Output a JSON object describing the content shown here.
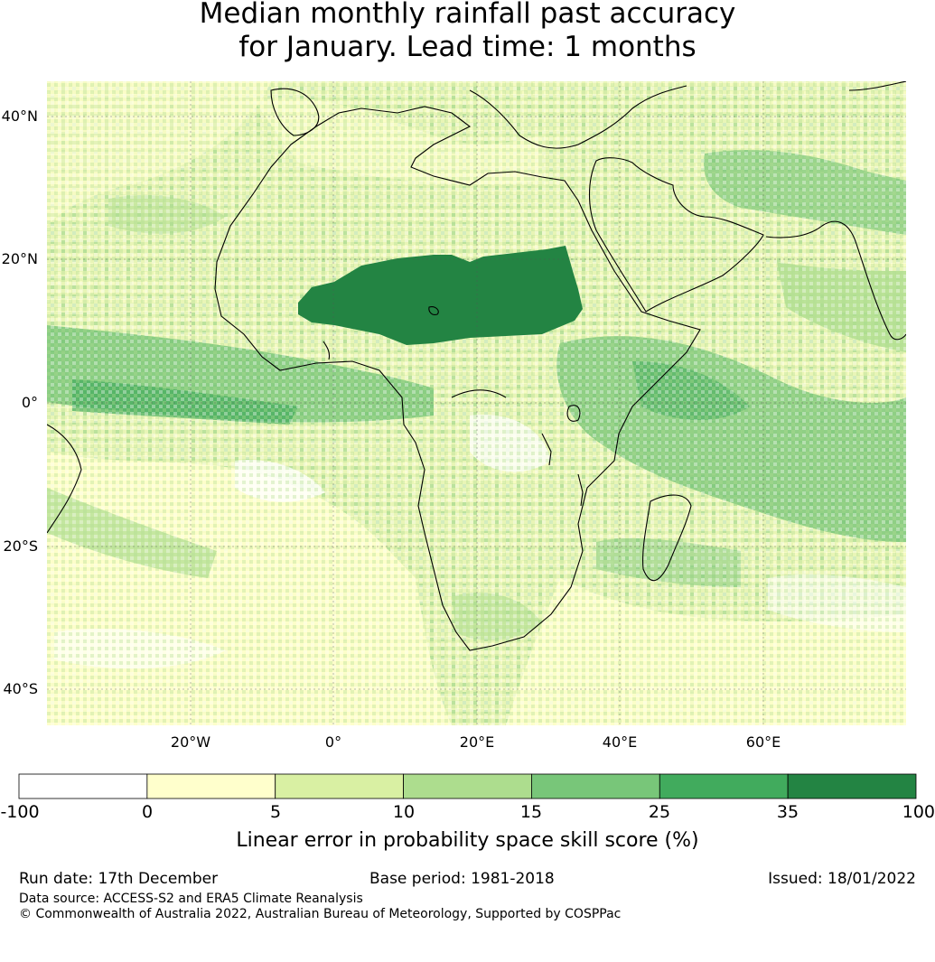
{
  "title": {
    "line1": "Median monthly rainfall past accuracy",
    "line2": "for January. Lead time: 1 months"
  },
  "map": {
    "region": "Africa",
    "lat_range": [
      -45,
      45
    ],
    "lon_range": [
      -40,
      80
    ],
    "lat_ticks": [
      "40°N",
      "20°N",
      "0°",
      "20°S",
      "40°S"
    ],
    "lon_ticks": [
      "20°W",
      "0°",
      "20°E",
      "40°E",
      "60°E"
    ],
    "grid": true
  },
  "colorbar": {
    "bounds": [
      "-100",
      "0",
      "5",
      "10",
      "15",
      "25",
      "35",
      "100"
    ],
    "colors": [
      "#ffffff",
      "#ffffcc",
      "#d9f0a3",
      "#addd8e",
      "#78c679",
      "#41ab5d",
      "#238443"
    ],
    "label": "Linear error in probability space skill score (%)"
  },
  "footer": {
    "run_date": "Run date: 17th December",
    "base_period": "Base period: 1981-2018",
    "issued": "Issued: 18/01/2022",
    "data_source": "Data source: ACCESS-S2 and ERA5 Climate Reanalysis",
    "copyright": "© Commonwealth of Australia 2022, Australian Bureau of Meteorology, Supported by COSPPac"
  }
}
